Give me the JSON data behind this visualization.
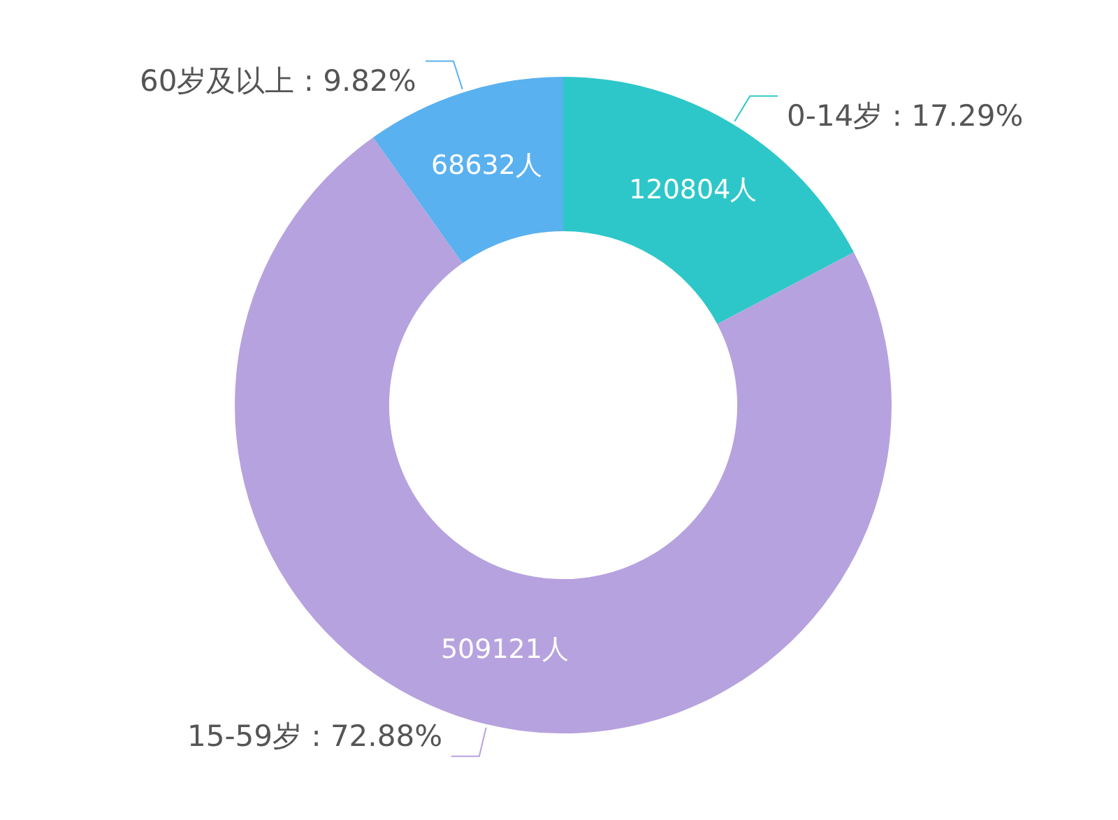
{
  "chart_data": {
    "type": "donut",
    "categories": [
      "0-14岁 : 17.29%",
      "15-59岁 : 72.88%",
      "60岁及以上 : 9.82%"
    ],
    "values": [
      120804,
      509121,
      68632
    ],
    "value_labels": [
      "120804人",
      "509121人",
      "68632人"
    ],
    "colors": [
      "#2ec7c9",
      "#b6a2de",
      "#5ab1ef"
    ],
    "legend": false
  }
}
